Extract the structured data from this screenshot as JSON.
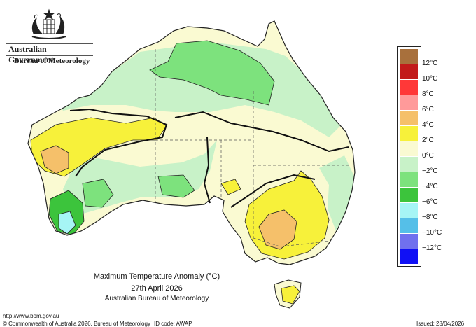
{
  "branding": {
    "line1": "Australian Government",
    "line2": "Bureau of Meteorology",
    "crest_icon": "commonwealth-coat-of-arms-icon"
  },
  "caption": {
    "title": "Maximum Temperature Anomaly (°C)",
    "date": "27th April 2026",
    "source": "Australian Bureau of Meteorology"
  },
  "footer": {
    "url": "http://www.bom.gov.au",
    "copyright": "© Commonwealth of Australia 2026, Bureau of Meteorology",
    "id_code": "ID code: AWAP",
    "issued": "Issued: 28/04/2026"
  },
  "legend": {
    "labels": [
      "12°C",
      "10°C",
      "8°C",
      "6°C",
      "4°C",
      "2°C",
      "0°C",
      "−2°C",
      "−4°C",
      "−6°C",
      "−8°C",
      "−10°C",
      "−12°C"
    ],
    "colors": [
      "#a8703c",
      "#c21a1a",
      "#ff3838",
      "#ff9a9a",
      "#f5c06a",
      "#f7f13a",
      "#fafad2",
      "#c8f2c8",
      "#7de27d",
      "#3cc43c",
      "#a6f5f5",
      "#55bfe8",
      "#7070ee",
      "#1010f5"
    ]
  },
  "map_colors": {
    "ocean": "#ffffff",
    "land_base": "#fafad2",
    "neg2": "#c8f2c8",
    "neg4": "#7de27d",
    "neg6": "#3cc43c",
    "neg8": "#a6f5f5",
    "pos2": "#f7f13a",
    "pos4": "#f5c06a",
    "outline": "#222222"
  }
}
